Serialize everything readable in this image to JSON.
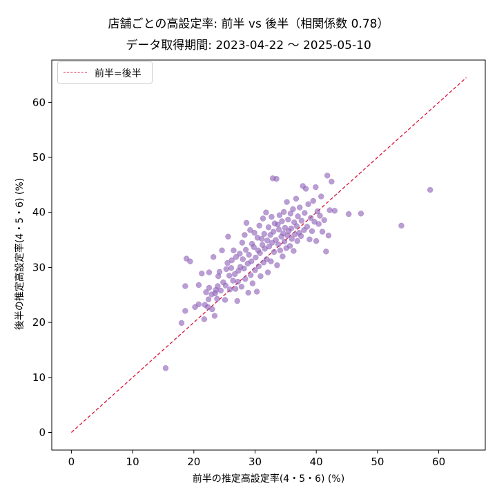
{
  "chart_data": {
    "type": "scatter",
    "title": "店舗ごとの高設定率: 前半 vs 後半（相関係数 0.78）",
    "subtitle": "データ取得期間: 2023-04-22 〜 2025-05-10",
    "xlabel": "前半の推定高設定率(4・5・6) (%)",
    "ylabel": "後半の推定高設定率(4・5・6) (%)",
    "xlim": [
      -3.2,
      67.6
    ],
    "ylim": [
      -3.2,
      67.7
    ],
    "xticks": [
      0,
      10,
      20,
      30,
      40,
      50,
      60
    ],
    "yticks": [
      0,
      10,
      20,
      30,
      40,
      50,
      60
    ],
    "grid": false,
    "legend_position": "top-left",
    "reference_line": {
      "name": "前半=後半",
      "x": [
        0,
        64.5
      ],
      "y": [
        0,
        64.5
      ],
      "color": "#dc143c",
      "style": "dashed"
    },
    "point_color": "#8a5bb5",
    "points": [
      [
        15.4,
        11.7
      ],
      [
        18.0,
        19.9
      ],
      [
        18.6,
        22.1
      ],
      [
        18.6,
        26.6
      ],
      [
        18.8,
        31.6
      ],
      [
        19.4,
        31.1
      ],
      [
        20.2,
        22.8
      ],
      [
        20.8,
        23.3
      ],
      [
        20.8,
        26.8
      ],
      [
        21.3,
        28.9
      ],
      [
        21.7,
        20.6
      ],
      [
        21.8,
        23.2
      ],
      [
        22.0,
        25.5
      ],
      [
        22.3,
        22.8
      ],
      [
        22.4,
        24.2
      ],
      [
        22.5,
        26.3
      ],
      [
        22.5,
        29.1
      ],
      [
        22.9,
        25.1
      ],
      [
        23.0,
        22.4
      ],
      [
        23.2,
        31.9
      ],
      [
        23.4,
        21.2
      ],
      [
        23.5,
        25.3
      ],
      [
        23.6,
        25.9
      ],
      [
        23.8,
        24.3
      ],
      [
        23.9,
        26.6
      ],
      [
        24.0,
        28.4
      ],
      [
        24.2,
        29.2
      ],
      [
        24.4,
        25.8
      ],
      [
        24.6,
        33.1
      ],
      [
        24.8,
        27.3
      ],
      [
        25.1,
        24.1
      ],
      [
        25.2,
        26.7
      ],
      [
        25.3,
        29.7
      ],
      [
        25.5,
        30.8
      ],
      [
        25.6,
        35.6
      ],
      [
        25.8,
        28.5
      ],
      [
        25.9,
        26.0
      ],
      [
        26.1,
        29.9
      ],
      [
        26.2,
        31.3
      ],
      [
        26.4,
        27.6
      ],
      [
        26.5,
        33.1
      ],
      [
        26.7,
        28.8
      ],
      [
        26.8,
        26.1
      ],
      [
        26.9,
        31.9
      ],
      [
        27.1,
        23.9
      ],
      [
        27.2,
        27.4
      ],
      [
        27.3,
        29.4
      ],
      [
        27.5,
        32.5
      ],
      [
        27.6,
        30.1
      ],
      [
        27.8,
        26.5
      ],
      [
        27.9,
        34.5
      ],
      [
        28.0,
        31.5
      ],
      [
        28.2,
        29.8
      ],
      [
        28.3,
        35.9
      ],
      [
        28.4,
        27.9
      ],
      [
        28.5,
        33.2
      ],
      [
        28.6,
        38.1
      ],
      [
        28.8,
        30.7
      ],
      [
        28.9,
        25.4
      ],
      [
        29.0,
        32.3
      ],
      [
        29.2,
        36.8
      ],
      [
        29.3,
        28.6
      ],
      [
        29.4,
        31.1
      ],
      [
        29.5,
        34.3
      ],
      [
        29.6,
        27.1
      ],
      [
        29.8,
        33.7
      ],
      [
        29.9,
        36.3
      ],
      [
        30.0,
        29.5
      ],
      [
        30.1,
        31.8
      ],
      [
        30.3,
        25.6
      ],
      [
        30.4,
        35.4
      ],
      [
        30.5,
        33.1
      ],
      [
        30.6,
        30.2
      ],
      [
        30.7,
        37.6
      ],
      [
        30.8,
        32.6
      ],
      [
        30.9,
        28.4
      ],
      [
        31.1,
        35.2
      ],
      [
        31.2,
        34.1
      ],
      [
        31.3,
        38.9
      ],
      [
        31.4,
        30.9
      ],
      [
        31.5,
        36.1
      ],
      [
        31.6,
        33.4
      ],
      [
        31.8,
        40.0
      ],
      [
        31.9,
        31.5
      ],
      [
        32.0,
        34.9
      ],
      [
        32.1,
        29.1
      ],
      [
        32.2,
        37.3
      ],
      [
        32.3,
        33.8
      ],
      [
        32.5,
        35.9
      ],
      [
        32.6,
        31.1
      ],
      [
        32.7,
        39.2
      ],
      [
        32.8,
        34.5
      ],
      [
        32.9,
        46.2
      ],
      [
        33.0,
        36.5
      ],
      [
        33.1,
        32.8
      ],
      [
        33.2,
        38.0
      ],
      [
        33.4,
        35.0
      ],
      [
        33.5,
        46.1
      ],
      [
        33.6,
        30.4
      ],
      [
        33.7,
        37.8
      ],
      [
        33.8,
        34.2
      ],
      [
        33.9,
        36.9
      ],
      [
        34.0,
        39.5
      ],
      [
        34.1,
        33.1
      ],
      [
        34.3,
        35.6
      ],
      [
        34.4,
        38.4
      ],
      [
        34.5,
        32.0
      ],
      [
        34.6,
        36.2
      ],
      [
        34.7,
        40.1
      ],
      [
        34.8,
        34.7
      ],
      [
        34.9,
        37.2
      ],
      [
        35.1,
        33.5
      ],
      [
        35.2,
        41.9
      ],
      [
        35.3,
        35.8
      ],
      [
        35.4,
        38.7
      ],
      [
        35.5,
        36.6
      ],
      [
        35.7,
        33.9
      ],
      [
        35.8,
        39.8
      ],
      [
        35.9,
        37.1
      ],
      [
        36.0,
        35.2
      ],
      [
        36.2,
        40.6
      ],
      [
        36.3,
        33.0
      ],
      [
        36.4,
        38.2
      ],
      [
        36.5,
        36.0
      ],
      [
        36.7,
        42.5
      ],
      [
        36.8,
        37.5
      ],
      [
        36.9,
        34.8
      ],
      [
        37.0,
        39.3
      ],
      [
        37.2,
        36.3
      ],
      [
        37.3,
        40.9
      ],
      [
        37.5,
        35.7
      ],
      [
        37.6,
        38.5
      ],
      [
        37.8,
        44.8
      ],
      [
        38.0,
        36.8
      ],
      [
        38.1,
        39.9
      ],
      [
        38.3,
        44.3
      ],
      [
        38.5,
        37.4
      ],
      [
        38.7,
        41.5
      ],
      [
        38.9,
        35.1
      ],
      [
        39.1,
        39.0
      ],
      [
        39.3,
        36.6
      ],
      [
        39.5,
        42.1
      ],
      [
        39.7,
        38.3
      ],
      [
        39.9,
        44.6
      ],
      [
        40.0,
        34.8
      ],
      [
        40.2,
        40.2
      ],
      [
        40.4,
        37.9
      ],
      [
        40.6,
        39.4
      ],
      [
        40.8,
        42.9
      ],
      [
        41.0,
        36.5
      ],
      [
        41.3,
        38.6
      ],
      [
        41.6,
        32.9
      ],
      [
        41.8,
        46.7
      ],
      [
        42.0,
        35.8
      ],
      [
        42.2,
        40.4
      ],
      [
        42.5,
        45.6
      ],
      [
        43.0,
        40.3
      ],
      [
        45.3,
        39.7
      ],
      [
        47.3,
        39.8
      ],
      [
        53.9,
        37.6
      ],
      [
        58.6,
        44.1
      ]
    ]
  }
}
